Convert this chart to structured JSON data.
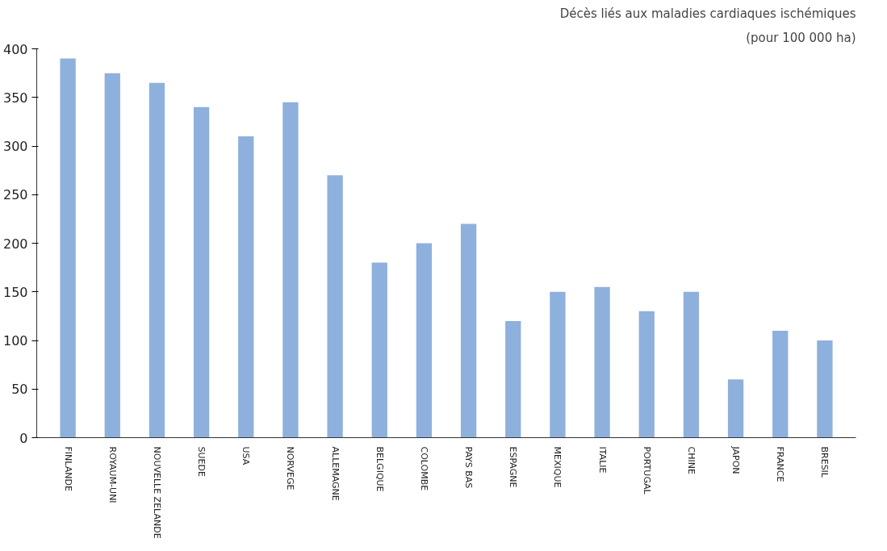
{
  "chart_data": {
    "type": "bar",
    "title": "Décès liés aux maladies cardiaques ischémiques",
    "subtitle": "(pour 100 000 ha)",
    "categories": [
      "FINLANDE",
      "ROYAUM-UNI",
      "NOUVELLE ZELANDE",
      "SUEDE",
      "USA",
      "NORVEGE",
      "ALLEMAGNE",
      "BELGIQUE",
      "COLOMBE",
      "PAYS BAS",
      "ESPAGNE",
      "MEXIQUE",
      "ITALIE",
      "PORTUGAL",
      "CHINE",
      "JAPON",
      "FRANCE",
      "BRESIL"
    ],
    "values": [
      390,
      375,
      365,
      340,
      310,
      345,
      270,
      180,
      200,
      220,
      120,
      150,
      155,
      130,
      150,
      60,
      110,
      100
    ],
    "color": "#8eb0dc",
    "ylim": [
      0,
      400
    ],
    "yticks": [
      0,
      50,
      100,
      150,
      200,
      250,
      300,
      350,
      400
    ],
    "grid": false
  }
}
